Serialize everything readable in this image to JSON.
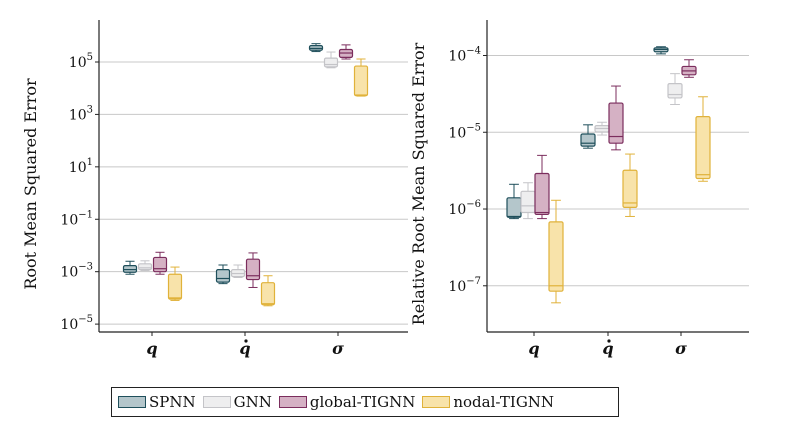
{
  "chart_data": [
    {
      "type": "box",
      "ylabel": "Root Mean Squared Error",
      "yscale": "log",
      "ylim": [
        5e-06,
        4000000
      ],
      "yticks": [
        {
          "base": "10",
          "exp": "5",
          "value": 100000
        },
        {
          "base": "10",
          "exp": "3",
          "value": 1000
        },
        {
          "base": "10",
          "exp": "1",
          "value": 10
        },
        {
          "base": "10",
          "exp": "−1",
          "value": 0.1
        },
        {
          "base": "10",
          "exp": "−3",
          "value": 0.001
        },
        {
          "base": "10",
          "exp": "−5",
          "value": 1e-05
        }
      ],
      "grid": "horizontal",
      "categories": [
        {
          "label": "q",
          "dot": false
        },
        {
          "label": "q",
          "dot": true
        },
        {
          "label": "σ",
          "dot": false
        }
      ],
      "series": [
        {
          "name": "SPNN",
          "boxes": [
            {
              "whislo": 0.0008,
              "q1": 0.00095,
              "med": 0.0012,
              "q3": 0.0017,
              "whishi": 0.0025
            },
            {
              "whislo": 0.00035,
              "q1": 0.0004,
              "med": 0.00055,
              "q3": 0.0012,
              "whishi": 0.0018
            },
            {
              "whislo": 250000,
              "q1": 280000,
              "med": 330000,
              "q3": 420000,
              "whishi": 500000
            }
          ]
        },
        {
          "name": "GNN",
          "boxes": [
            {
              "whislo": 0.0011,
              "q1": 0.0012,
              "med": 0.0014,
              "q3": 0.002,
              "whishi": 0.0026
            },
            {
              "whislo": 0.0006,
              "q1": 0.00065,
              "med": 0.00085,
              "q3": 0.0012,
              "whishi": 0.0018
            },
            {
              "whislo": 60000,
              "q1": 65000,
              "med": 80000,
              "q3": 140000,
              "whishi": 240000
            }
          ]
        },
        {
          "name": "global-TIGNN",
          "boxes": [
            {
              "whislo": 0.0008,
              "q1": 0.001,
              "med": 0.0013,
              "q3": 0.0035,
              "whishi": 0.0055
            },
            {
              "whislo": 0.00025,
              "q1": 0.0005,
              "med": 0.0007,
              "q3": 0.003,
              "whishi": 0.0052
            },
            {
              "whislo": 130000,
              "q1": 150000,
              "med": 220000,
              "q3": 300000,
              "whishi": 450000
            }
          ]
        },
        {
          "name": "nodal-TIGNN",
          "boxes": [
            {
              "whislo": 8e-05,
              "q1": 9e-05,
              "med": 0.0001,
              "q3": 0.0008,
              "whishi": 0.0015
            },
            {
              "whislo": 5e-05,
              "q1": 5.5e-05,
              "med": 6e-05,
              "q3": 0.00038,
              "whishi": 0.0007
            },
            {
              "whislo": 5000,
              "q1": 5200,
              "med": 5500,
              "q3": 70000,
              "whishi": 130000
            }
          ]
        }
      ]
    },
    {
      "type": "box",
      "ylabel": "Relative Root Mean Squared Error",
      "yscale": "log",
      "ylim": [
        2.5e-08,
        0.00029
      ],
      "yticks": [
        {
          "base": "10",
          "exp": "−4",
          "value": 0.0001
        },
        {
          "base": "10",
          "exp": "−5",
          "value": 1e-05
        },
        {
          "base": "10",
          "exp": "−6",
          "value": 1e-06
        },
        {
          "base": "10",
          "exp": "−7",
          "value": 1e-07
        }
      ],
      "grid": "horizontal",
      "categories": [
        {
          "label": "q",
          "dot": false
        },
        {
          "label": "q",
          "dot": true
        },
        {
          "label": "σ",
          "dot": false
        }
      ],
      "series": [
        {
          "name": "SPNN",
          "boxes": [
            {
              "whislo": 7.5e-07,
              "q1": 7.8e-07,
              "med": 8e-07,
              "q3": 1.4e-06,
              "whishi": 2.1e-06
            },
            {
              "whislo": 6.2e-06,
              "q1": 6.6e-06,
              "med": 7.2e-06,
              "q3": 9.5e-06,
              "whishi": 1.25e-05
            },
            {
              "whislo": 0.000105,
              "q1": 0.000112,
              "med": 0.00012,
              "q3": 0.000126,
              "whishi": 0.00013
            }
          ]
        },
        {
          "name": "GNN",
          "boxes": [
            {
              "whislo": 7.5e-07,
              "q1": 9e-07,
              "med": 1.1e-06,
              "q3": 1.7e-06,
              "whishi": 2.2e-06
            },
            {
              "whislo": 9.2e-06,
              "q1": 1.01e-05,
              "med": 1.12e-05,
              "q3": 1.22e-05,
              "whishi": 1.35e-05
            },
            {
              "whislo": 2.3e-05,
              "q1": 2.8e-05,
              "med": 3.1e-05,
              "q3": 4.3e-05,
              "whishi": 5.8e-05
            }
          ]
        },
        {
          "name": "global-TIGNN",
          "boxes": [
            {
              "whislo": 7.5e-07,
              "q1": 8.5e-07,
              "med": 9e-07,
              "q3": 2.9e-06,
              "whishi": 5e-06
            },
            {
              "whislo": 5.9e-06,
              "q1": 7.2e-06,
              "med": 8.8e-06,
              "q3": 2.4e-05,
              "whishi": 4e-05
            },
            {
              "whislo": 5.2e-05,
              "q1": 5.6e-05,
              "med": 6.3e-05,
              "q3": 7.2e-05,
              "whishi": 8.8e-05
            }
          ]
        },
        {
          "name": "nodal-TIGNN",
          "boxes": [
            {
              "whislo": 6e-08,
              "q1": 8.5e-08,
              "med": 1e-07,
              "q3": 6.8e-07,
              "whishi": 1.3e-06
            },
            {
              "whislo": 8e-07,
              "q1": 1.05e-06,
              "med": 1.2e-06,
              "q3": 3.2e-06,
              "whishi": 5.2e-06
            },
            {
              "whislo": 2.3e-06,
              "q1": 2.5e-06,
              "med": 2.8e-06,
              "q3": 1.6e-05,
              "whishi": 2.9e-05
            }
          ]
        }
      ]
    }
  ],
  "styles": [
    {
      "fill": "#b4c6cb",
      "stroke": "#1f4f5b"
    },
    {
      "fill": "#eeeeef",
      "stroke": "#c4c4c8"
    },
    {
      "fill": "#d5b1c4",
      "stroke": "#7b2d5d"
    },
    {
      "fill": "#f8e3aa",
      "stroke": "#e0b23a"
    }
  ],
  "legend": {
    "placement": "bottom",
    "items": [
      "SPNN",
      "GNN",
      "global-TIGNN",
      "nodal-TIGNN"
    ]
  }
}
